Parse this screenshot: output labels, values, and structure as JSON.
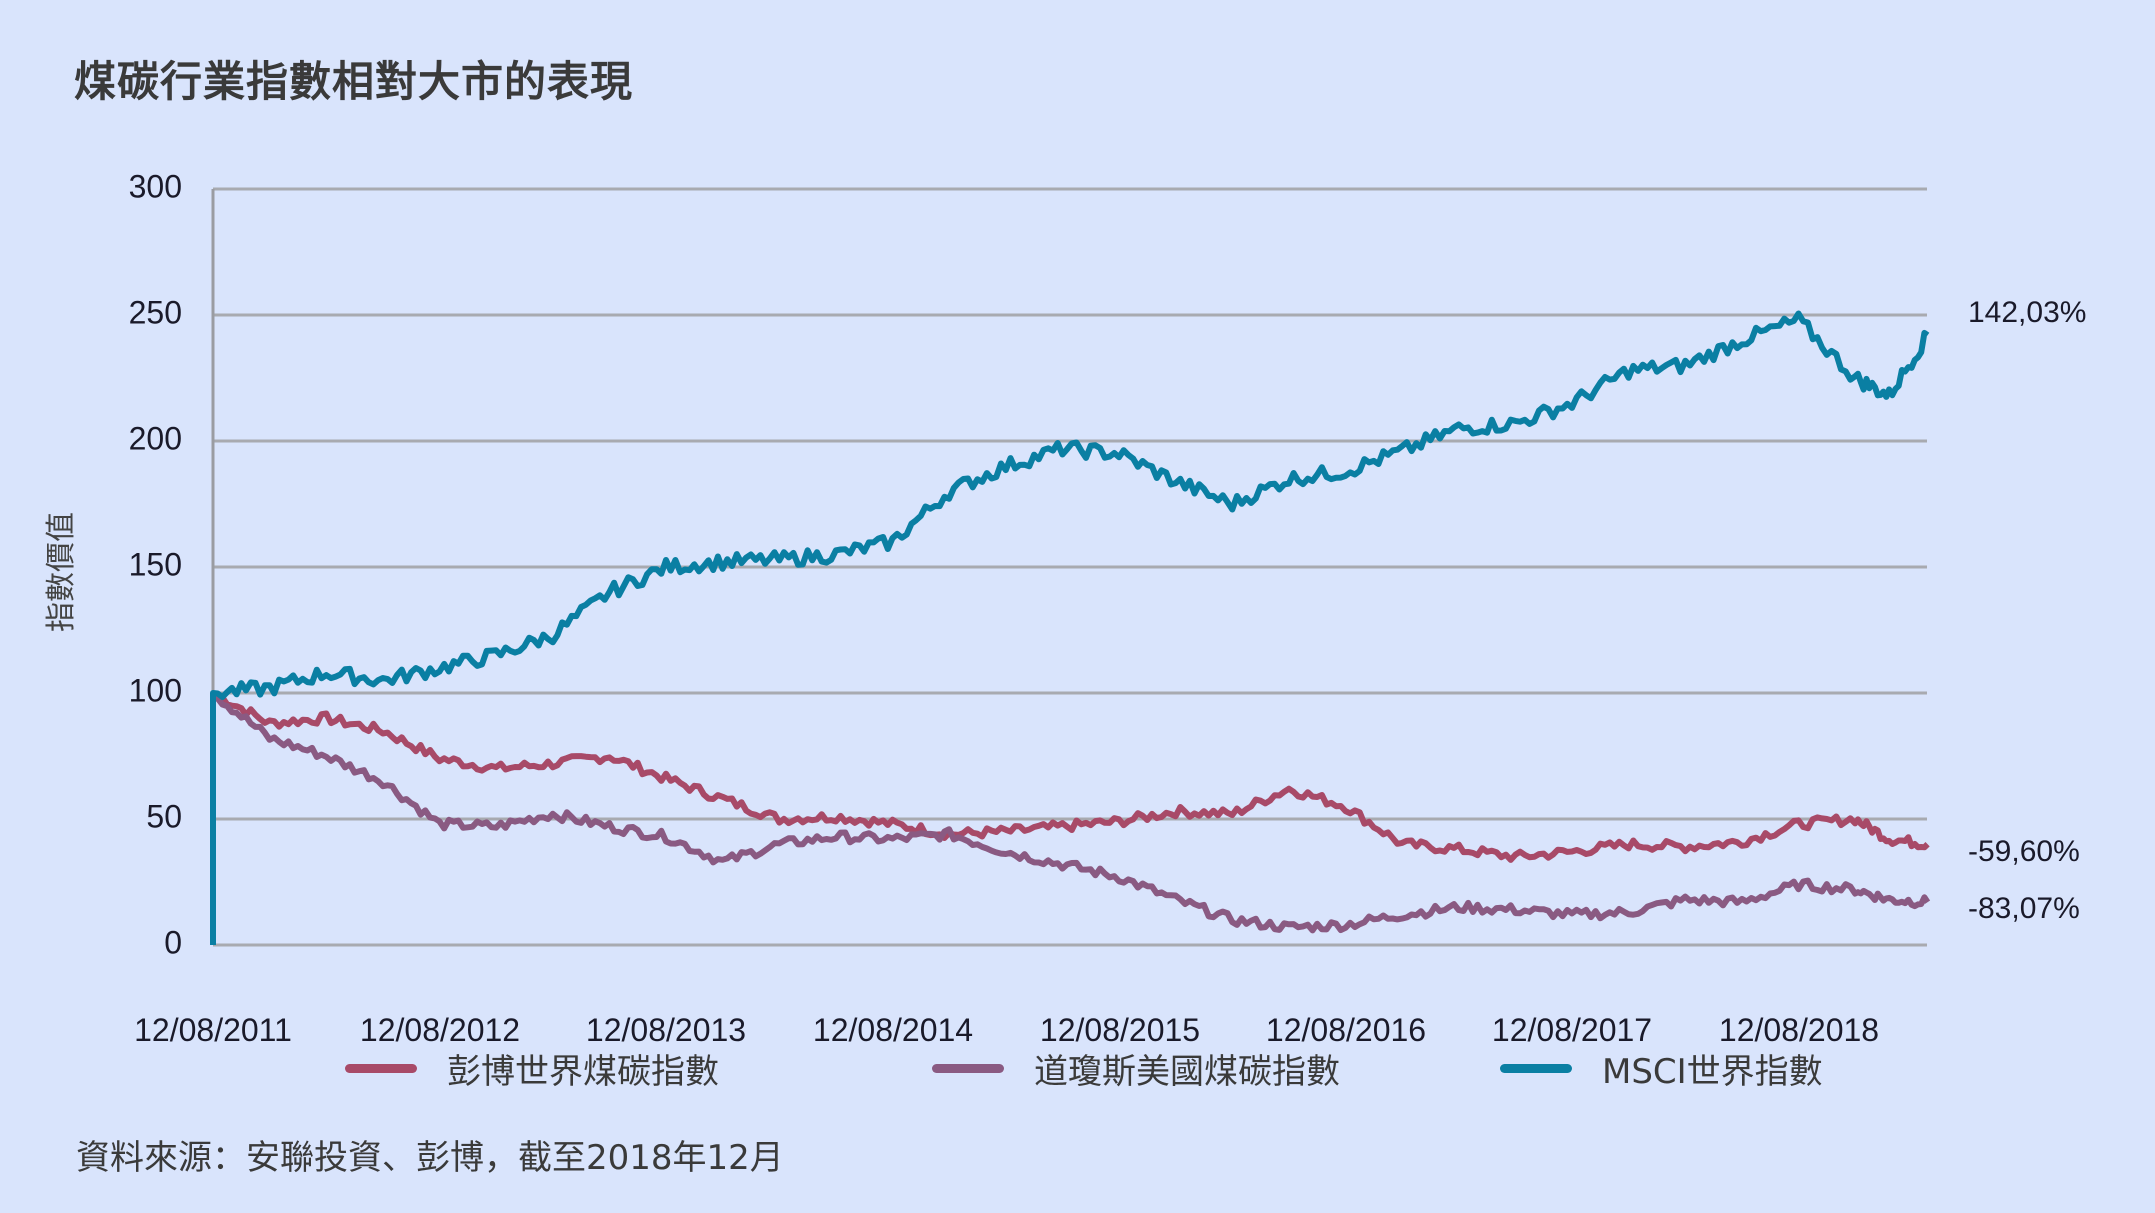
{
  "title": "煤碳行業指數相對大市的表現",
  "footnote": "資料來源：安聯投資、彭博，截至2018年12月",
  "colors": {
    "background": "#d9e4fc",
    "gridline": "#a8aab0",
    "bloomberg": "#a84a68",
    "dowjones": "#8a5a82",
    "msci": "#0a7fa3"
  },
  "end_labels": {
    "msci": "142,03%",
    "bloomberg": "-59,60%",
    "dowjones": "-83,07%"
  },
  "legend": [
    {
      "label": "彭博世界煤碳指數",
      "color": "#a84a68"
    },
    {
      "label": "道瓊斯美國煤碳指數",
      "color": "#8a5a82"
    },
    {
      "label": "MSCI世界指數",
      "color": "#0a7fa3"
    }
  ],
  "chart_data": {
    "type": "line",
    "title": "煤碳行業指數相對大市的表現",
    "xlabel": "",
    "ylabel": "指數價值",
    "ylim": [
      0,
      300
    ],
    "yticks": [
      "300",
      "250",
      "200",
      "150",
      "100",
      "50",
      "0"
    ],
    "xticks": [
      "12/08/2011",
      "12/08/2012",
      "12/08/2013",
      "12/08/2014",
      "12/08/2015",
      "12/08/2016",
      "12/08/2017",
      "12/08/2018"
    ],
    "grid": true,
    "legend_position": "bottom",
    "x_years_from_start": [
      0,
      0.25,
      0.5,
      0.75,
      1.0,
      1.25,
      1.5,
      1.75,
      2.0,
      2.25,
      2.5,
      2.75,
      3.0,
      3.25,
      3.5,
      3.75,
      4.0,
      4.25,
      4.5,
      4.75,
      5.0,
      5.25,
      5.5,
      5.75,
      6.0,
      6.25,
      6.5,
      6.75,
      7.0,
      7.25,
      7.4,
      7.57
    ],
    "series": [
      {
        "name": "彭博世界煤碳指數",
        "key": "bloomberg",
        "values": [
          100,
          88,
          90,
          85,
          74,
          70,
          72,
          75,
          66,
          58,
          50,
          51,
          48,
          44,
          45,
          47,
          49,
          53,
          52,
          62,
          55,
          40,
          38,
          35,
          37,
          40,
          39,
          41,
          48,
          50,
          42,
          40
        ]
      },
      {
        "name": "道瓊斯美國煤碳指數",
        "key": "dowjones",
        "values": [
          100,
          82,
          75,
          65,
          48,
          47,
          52,
          47,
          43,
          33,
          40,
          43,
          42,
          44,
          37,
          32,
          27,
          18,
          10,
          7,
          8,
          12,
          15,
          14,
          12,
          13,
          18,
          17,
          24,
          22,
          18,
          17
        ]
      },
      {
        "name": "MSCI世界指數",
        "key": "msci",
        "values": [
          100,
          102,
          108,
          105,
          110,
          115,
          123,
          140,
          150,
          152,
          153,
          155,
          160,
          180,
          190,
          197,
          195,
          184,
          175,
          185,
          188,
          196,
          205,
          207,
          215,
          228,
          230,
          240,
          248,
          225,
          218,
          242
        ]
      }
    ]
  }
}
